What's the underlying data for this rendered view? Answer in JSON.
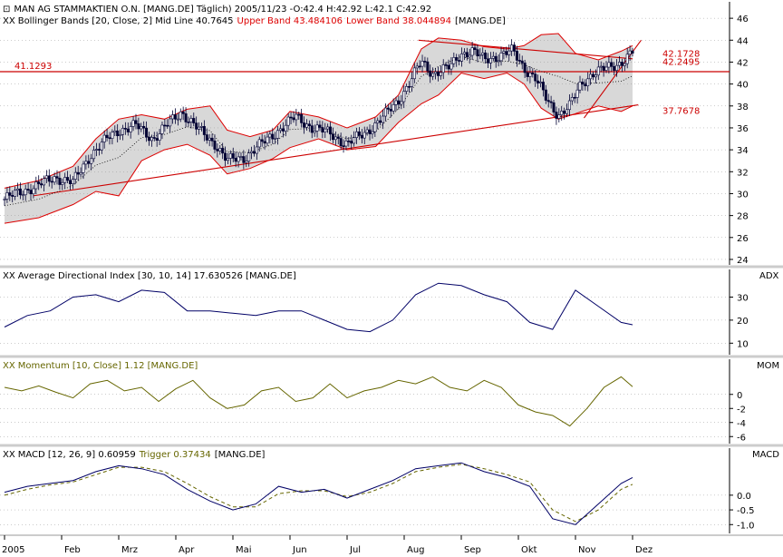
{
  "colors": {
    "price": "#000033",
    "band": "#dd0000",
    "band_fill": "#d8d8d8",
    "trend": "#cc0000",
    "adx": "#000066",
    "momentum": "#666600",
    "macd": "#000066",
    "trigger": "#666600",
    "grid": "#999999",
    "separator": "#cccccc"
  },
  "x_axis": {
    "labels": [
      "2005",
      "Feb",
      "Mrz",
      "Apr",
      "Mai",
      "Jun",
      "Jul",
      "Aug",
      "Sep",
      "Okt",
      "Nov",
      "Dez"
    ],
    "label_months": [
      0,
      1,
      2,
      3,
      4,
      5,
      6,
      7,
      8,
      9,
      10,
      11
    ]
  },
  "panels": {
    "price": {
      "header_symbol": "⊡",
      "title": "MAN AG STAMMAKTIEN O.N. [MANG.DE]  Täglich) 2005/11/23 -O:42.4 H:42.92 L:42.1 C:42.92",
      "bb_symbol": "XX",
      "bb_prefix": "Bollinger Bands [20, Close, 2] Mid Line 40.7645",
      "bb_upper": "Upper Band 43.484106",
      "bb_lower": "Lower Band 38.044894",
      "bb_suffix": "[MANG.DE]",
      "y_ticks": [
        "46",
        "44",
        "42",
        "40",
        "38",
        "36",
        "34",
        "32",
        "30",
        "28",
        "26",
        "24"
      ],
      "y_tick_values": [
        46,
        44,
        42,
        40,
        38,
        36,
        34,
        32,
        30,
        28,
        26,
        24
      ],
      "ylim": [
        23.5,
        47.5
      ],
      "horizontal_line": {
        "value": 41.1293,
        "label": "41.1293"
      },
      "price_labels": [
        {
          "value": 42.1728,
          "label": "42.1728"
        },
        {
          "value": 42.2495,
          "label": "42.2495"
        },
        {
          "value": 37.7678,
          "label": "37.7678"
        }
      ],
      "trendlines": [
        {
          "from": [
            0.5,
            29.8
          ],
          "to": [
            11.1,
            38.1
          ]
        },
        {
          "from": [
            7.25,
            44.0
          ],
          "to": [
            11.0,
            42.3
          ]
        },
        {
          "from": [
            10.15,
            36.9
          ],
          "to": [
            11.15,
            44.0
          ]
        }
      ]
    },
    "adx": {
      "symbol": "XX",
      "title": "Average Directional Index [30, 10, 14] 17.630526 [MANG.DE]",
      "side_label": "ADX",
      "y_ticks": [
        "30",
        "20",
        "10"
      ],
      "y_tick_values": [
        30,
        20,
        10
      ],
      "ylim": [
        5,
        42
      ]
    },
    "momentum": {
      "symbol": "XX",
      "title": "Momentum [10, Close] 1.12 [MANG.DE]",
      "side_label": "MOM",
      "y_ticks": [
        "0",
        "-2",
        "-4",
        "-6"
      ],
      "y_tick_values": [
        0,
        -2,
        -4,
        -6
      ],
      "ylim": [
        -7,
        5
      ]
    },
    "macd": {
      "symbol": "XX",
      "title": "MACD [12, 26, 9] 0.60959",
      "trigger_label": "Trigger 0.37434",
      "suffix": "[MANG.DE]",
      "side_label": "MACD",
      "y_ticks": [
        "0.0",
        "-0.5",
        "-1.0"
      ],
      "y_tick_values": [
        0.0,
        -0.5,
        -1.0
      ],
      "ylim": [
        -1.3,
        1.6
      ]
    }
  },
  "chart_data": {
    "type": "line",
    "title": "MAN AG STAMMAKTIEN O.N. [MANG.DE]",
    "x_unit": "month index (0 = Jan 2005)",
    "series": [
      {
        "name": "Close",
        "x": [
          0.0,
          0.3,
          0.6,
          0.9,
          1.2,
          1.5,
          1.8,
          2.0,
          2.3,
          2.6,
          2.9,
          3.1,
          3.4,
          3.7,
          3.9,
          4.2,
          4.5,
          4.8,
          5.1,
          5.4,
          5.7,
          6.0,
          6.3,
          6.6,
          6.9,
          7.1,
          7.3,
          7.5,
          7.8,
          8.0,
          8.2,
          8.4,
          8.6,
          8.9,
          9.1,
          9.3,
          9.5,
          9.7,
          9.9,
          10.1,
          10.3,
          10.6,
          10.8,
          11.0
        ],
        "values": [
          29.5,
          30.2,
          30.8,
          31.5,
          31.0,
          33.5,
          35.0,
          35.8,
          36.2,
          35.0,
          36.5,
          37.5,
          35.8,
          34.5,
          33.0,
          33.3,
          34.5,
          35.8,
          37.0,
          36.0,
          35.5,
          34.5,
          35.5,
          36.8,
          38.5,
          40.2,
          42.0,
          41.0,
          41.5,
          42.8,
          43.0,
          42.2,
          42.5,
          43.0,
          41.5,
          40.5,
          38.5,
          37.2,
          38.0,
          40.0,
          41.0,
          41.5,
          42.0,
          42.9
        ]
      },
      {
        "name": "Upper Band",
        "x": [
          0.0,
          0.6,
          1.2,
          1.6,
          2.0,
          2.4,
          2.8,
          3.2,
          3.6,
          3.9,
          4.3,
          4.7,
          5.0,
          5.5,
          6.0,
          6.5,
          6.9,
          7.3,
          7.6,
          8.0,
          8.4,
          8.8,
          9.1,
          9.4,
          9.7,
          10.0,
          10.4,
          10.8,
          11.0
        ],
        "values": [
          30.5,
          31.2,
          32.5,
          35.0,
          36.8,
          37.2,
          36.8,
          37.7,
          38.0,
          35.8,
          35.2,
          35.8,
          37.5,
          37.0,
          36.0,
          37.0,
          39.0,
          43.2,
          44.2,
          44.0,
          43.4,
          43.2,
          43.5,
          44.5,
          44.6,
          42.8,
          42.2,
          43.0,
          43.5
        ]
      },
      {
        "name": "Lower Band",
        "x": [
          0.0,
          0.6,
          1.2,
          1.6,
          2.0,
          2.4,
          2.8,
          3.2,
          3.6,
          3.9,
          4.3,
          4.7,
          5.0,
          5.5,
          6.0,
          6.5,
          6.9,
          7.3,
          7.6,
          8.0,
          8.4,
          8.8,
          9.1,
          9.4,
          9.7,
          10.0,
          10.4,
          10.8,
          11.0
        ],
        "values": [
          27.3,
          27.8,
          29.0,
          30.2,
          29.8,
          33.0,
          34.0,
          34.5,
          33.5,
          31.8,
          32.3,
          33.2,
          34.2,
          35.0,
          34.0,
          34.3,
          36.5,
          38.2,
          39.0,
          41.0,
          40.5,
          41.0,
          40.0,
          37.8,
          36.8,
          37.3,
          38.0,
          37.5,
          38.0
        ]
      },
      {
        "name": "Average Directional Index",
        "x": [
          0.0,
          0.4,
          0.8,
          1.2,
          1.6,
          2.0,
          2.4,
          2.8,
          3.2,
          3.6,
          4.0,
          4.4,
          4.8,
          5.2,
          5.6,
          6.0,
          6.4,
          6.8,
          7.2,
          7.6,
          8.0,
          8.4,
          8.8,
          9.2,
          9.6,
          10.0,
          10.4,
          10.8,
          11.0
        ],
        "values": [
          17,
          22,
          24,
          30,
          31,
          28,
          33,
          32,
          24,
          24,
          23,
          22,
          24,
          24,
          20,
          16,
          15,
          20,
          31,
          36,
          35,
          31,
          28,
          19,
          16,
          33,
          26,
          19,
          18
        ]
      },
      {
        "name": "Momentum",
        "x": [
          0.0,
          0.3,
          0.6,
          0.9,
          1.2,
          1.5,
          1.8,
          2.1,
          2.4,
          2.7,
          3.0,
          3.3,
          3.6,
          3.9,
          4.2,
          4.5,
          4.8,
          5.1,
          5.4,
          5.7,
          6.0,
          6.3,
          6.6,
          6.9,
          7.2,
          7.5,
          7.8,
          8.1,
          8.4,
          8.7,
          9.0,
          9.3,
          9.6,
          9.9,
          10.2,
          10.5,
          10.8,
          11.0
        ],
        "values": [
          1.0,
          0.5,
          1.2,
          0.3,
          -0.5,
          1.5,
          2.0,
          0.5,
          1.0,
          -1.0,
          0.8,
          2.0,
          -0.5,
          -2.0,
          -1.5,
          0.5,
          1.0,
          -1.0,
          -0.5,
          1.5,
          -0.5,
          0.5,
          1.0,
          2.0,
          1.5,
          2.5,
          1.0,
          0.5,
          2.0,
          1.0,
          -1.5,
          -2.5,
          -3.0,
          -4.5,
          -2.0,
          1.0,
          2.5,
          1.1
        ]
      },
      {
        "name": "MACD",
        "x": [
          0.0,
          0.4,
          0.8,
          1.2,
          1.6,
          2.0,
          2.4,
          2.8,
          3.2,
          3.6,
          4.0,
          4.4,
          4.8,
          5.2,
          5.6,
          6.0,
          6.4,
          6.8,
          7.2,
          7.6,
          8.0,
          8.4,
          8.8,
          9.2,
          9.6,
          10.0,
          10.4,
          10.8,
          11.0
        ],
        "values": [
          0.1,
          0.3,
          0.4,
          0.5,
          0.8,
          1.0,
          0.9,
          0.7,
          0.2,
          -0.2,
          -0.5,
          -0.3,
          0.3,
          0.1,
          0.2,
          -0.1,
          0.2,
          0.5,
          0.9,
          1.0,
          1.1,
          0.8,
          0.6,
          0.3,
          -0.8,
          -1.0,
          -0.3,
          0.4,
          0.6
        ]
      },
      {
        "name": "Trigger",
        "x": [
          0.0,
          0.4,
          0.8,
          1.2,
          1.6,
          2.0,
          2.4,
          2.8,
          3.2,
          3.6,
          4.0,
          4.4,
          4.8,
          5.2,
          5.6,
          6.0,
          6.4,
          6.8,
          7.2,
          7.6,
          8.0,
          8.4,
          8.8,
          9.2,
          9.6,
          10.0,
          10.4,
          10.8,
          11.0
        ],
        "values": [
          0.0,
          0.2,
          0.35,
          0.45,
          0.7,
          0.95,
          0.95,
          0.8,
          0.4,
          -0.05,
          -0.4,
          -0.4,
          0.05,
          0.15,
          0.15,
          -0.05,
          0.1,
          0.4,
          0.8,
          0.95,
          1.05,
          0.9,
          0.7,
          0.45,
          -0.5,
          -0.9,
          -0.5,
          0.2,
          0.37
        ]
      }
    ]
  }
}
